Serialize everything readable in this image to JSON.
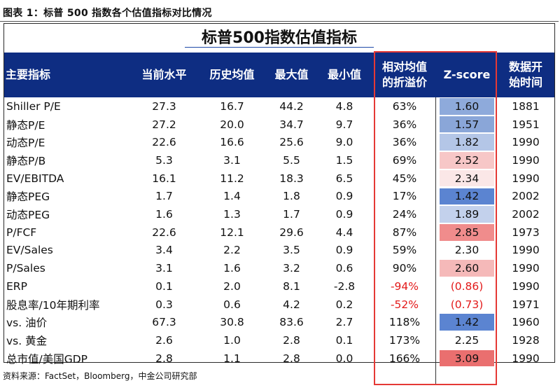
{
  "caption": "图表 1：标普 500 指数各个估值指标对比情况",
  "table_title": "标普500指数估值指标",
  "headers": [
    "主要指标",
    "当前水平",
    "历史均值",
    "最大值",
    "最小值",
    "相对均值\n的折溢价",
    "Z-score",
    "数据开\n始时间"
  ],
  "rows": [
    {
      "name": "Shiller P/E",
      "current": "27.3",
      "hist_mean": "16.7",
      "max": "44.2",
      "min": "4.8",
      "premium": "63%",
      "z": "1.60",
      "z_color": "#8eaadb",
      "start": "1881"
    },
    {
      "name": "静态P/E",
      "current": "27.2",
      "hist_mean": "20.0",
      "max": "34.7",
      "min": "9.7",
      "premium": "36%",
      "z": "1.57",
      "z_color": "#8aa6d8",
      "start": "1951"
    },
    {
      "name": "动态P/E",
      "current": "22.6",
      "hist_mean": "16.6",
      "max": "25.6",
      "min": "9.0",
      "premium": "36%",
      "z": "1.82",
      "z_color": "#b4c6e7",
      "start": "1990"
    },
    {
      "name": "静态P/B",
      "current": "5.3",
      "hist_mean": "3.1",
      "max": "5.5",
      "min": "1.5",
      "premium": "69%",
      "z": "2.52",
      "z_color": "#f7c7c7",
      "start": "1990"
    },
    {
      "name": "EV/EBITDA",
      "current": "16.1",
      "hist_mean": "11.2",
      "max": "18.3",
      "min": "6.5",
      "premium": "45%",
      "z": "2.34",
      "z_color": "#fbe7e7",
      "start": "1990"
    },
    {
      "name": "静态PEG",
      "current": "1.7",
      "hist_mean": "1.4",
      "max": "1.8",
      "min": "0.9",
      "premium": "17%",
      "z": "1.42",
      "z_color": "#5b84d1",
      "start": "2002"
    },
    {
      "name": "动态PEG",
      "current": "1.6",
      "hist_mean": "1.3",
      "max": "1.7",
      "min": "0.9",
      "premium": "24%",
      "z": "1.89",
      "z_color": "#c3d1ec",
      "start": "2002"
    },
    {
      "name": "P/FCF",
      "current": "22.6",
      "hist_mean": "12.1",
      "max": "29.6",
      "min": "4.4",
      "premium": "87%",
      "z": "2.85",
      "z_color": "#f08c8c",
      "start": "1973"
    },
    {
      "name": "EV/Sales",
      "current": "3.4",
      "hist_mean": "2.2",
      "max": "3.5",
      "min": "0.9",
      "premium": "59%",
      "z": "2.30",
      "z_color": "#ffffff",
      "start": "1990"
    },
    {
      "name": "P/Sales",
      "current": "3.1",
      "hist_mean": "1.6",
      "max": "3.2",
      "min": "0.6",
      "premium": "90%",
      "z": "2.60",
      "z_color": "#f5b9b9",
      "start": "1990"
    },
    {
      "name": "ERP",
      "current": "0.1",
      "hist_mean": "2.0",
      "max": "8.1",
      "min": "-2.8",
      "premium": "-94%",
      "z": "(0.86)",
      "z_color": "#ffffff",
      "start": "1990",
      "neg": true
    },
    {
      "name": "股息率/10年期利率",
      "current": "0.3",
      "hist_mean": "0.6",
      "max": "4.2",
      "min": "0.2",
      "premium": "-52%",
      "z": "(0.73)",
      "z_color": "#ffffff",
      "start": "1971",
      "neg": true
    },
    {
      "name": "vs. 油价",
      "current": "67.3",
      "hist_mean": "30.8",
      "max": "83.6",
      "min": "2.7",
      "premium": "118%",
      "z": "1.42",
      "z_color": "#5b84d1",
      "start": "1960"
    },
    {
      "name": "vs. 黄金",
      "current": "2.6",
      "hist_mean": "1.0",
      "max": "2.8",
      "min": "0.1",
      "premium": "173%",
      "z": "2.25",
      "z_color": "#ffffff",
      "start": "1928"
    },
    {
      "name": "总市值/美国GDP",
      "current": "2.8",
      "hist_mean": "1.1",
      "max": "2.8",
      "min": "0.0",
      "premium": "166%",
      "z": "3.09",
      "z_color": "#ea6f6f",
      "start": "1990"
    }
  ],
  "source": "资料来源：FactSet，Bloomberg，中金公司研究部"
}
